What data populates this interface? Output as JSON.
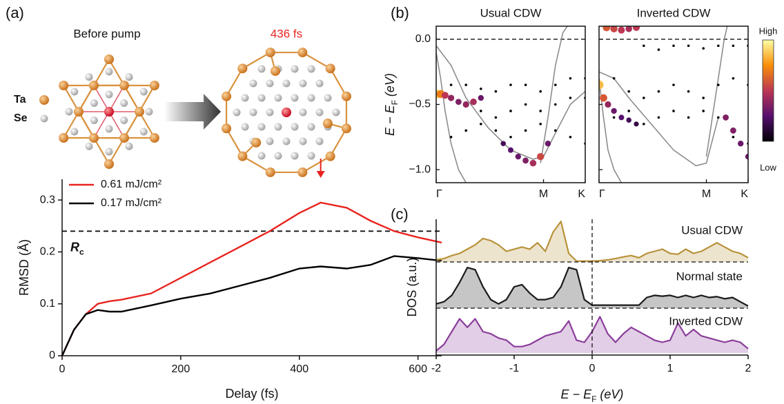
{
  "structure": {
    "label": "(a)",
    "before": "Before pump",
    "after": "436 fs",
    "legend": [
      "Ta",
      "Se"
    ]
  },
  "chart_data": [
    {
      "type": "line",
      "xlabel": "Delay (fs)",
      "ylabel": "RMSD (Å)",
      "x": [
        0,
        20,
        40,
        60,
        80,
        100,
        150,
        200,
        250,
        300,
        350,
        400,
        436,
        480,
        520,
        560,
        600,
        640
      ],
      "series": [
        {
          "name": "0.61 mJ/cm²",
          "color": "#e8231f",
          "values": [
            0,
            0.05,
            0.08,
            0.1,
            0.105,
            0.108,
            0.12,
            0.15,
            0.18,
            0.21,
            0.24,
            0.275,
            0.295,
            0.285,
            0.26,
            0.24,
            0.228,
            0.218
          ]
        },
        {
          "name": "0.17 mJ/cm²",
          "color": "#000000",
          "values": [
            0,
            0.05,
            0.08,
            0.088,
            0.085,
            0.085,
            0.097,
            0.11,
            0.12,
            0.135,
            0.15,
            0.168,
            0.172,
            0.168,
            0.175,
            0.192,
            0.188,
            0.183
          ]
        }
      ],
      "xlim": [
        0,
        640
      ],
      "xticks": [
        0,
        200,
        400,
        600
      ],
      "ylim": [
        0,
        0.34
      ],
      "yticks": [
        0,
        0.1,
        0.2,
        0.3
      ],
      "threshold": {
        "value": 0.24,
        "label": [
          "R",
          "c"
        ]
      },
      "arrow_x": 436
    },
    {
      "type": "scatter",
      "panel_label": "(b)",
      "ylabel": [
        "E − E",
        "F",
        " (eV)"
      ],
      "xlim": [
        0,
        1
      ],
      "xticks": [
        {
          "value": 0,
          "label": "Γ"
        },
        {
          "value": 0.72,
          "label": "M"
        },
        {
          "value": 1,
          "label": "K"
        }
      ],
      "ylim": [
        -1.1,
        0.1
      ],
      "yticks": [
        {
          "value": 0,
          "label": "0.0"
        },
        {
          "value": -0.5,
          "label": "−0.5"
        },
        {
          "value": -1,
          "label": "−1.0"
        }
      ],
      "fermi": 0,
      "colorbar": [
        "High",
        "Low"
      ],
      "panels": [
        {
          "title": "Usual CDW",
          "series": [
            {
              "style": "line",
              "color": "#8c8c8c",
              "x": [
                0,
                0.03,
                0.06,
                0.1,
                0.15,
                0.2
              ],
              "values": [
                -0.1,
                -0.3,
                -0.55,
                -0.8,
                -1.0,
                -1.1
              ]
            },
            {
              "style": "line",
              "color": "#8c8c8c",
              "x": [
                0,
                0.1,
                0.2,
                0.35,
                0.5,
                0.65,
                0.72,
                0.8,
                0.9,
                1
              ],
              "values": [
                -0.05,
                -0.2,
                -0.45,
                -0.68,
                -0.85,
                -0.92,
                -0.9,
                -0.72,
                -0.5,
                -0.4
              ]
            },
            {
              "style": "line",
              "color": "#8c8c8c",
              "x": [
                0.7,
                0.75,
                0.8,
                0.85,
                0.88
              ],
              "values": [
                -0.95,
                -0.6,
                -0.2,
                0.05,
                0.1
              ]
            },
            {
              "style": "dots",
              "color": "#000000",
              "x": [
                0.1,
                0.2,
                0.3,
                0.4,
                0.5,
                0.6,
                0.7,
                0.8,
                0.9,
                1
              ],
              "values": [
                -0.35,
                -0.35,
                -0.38,
                -0.4,
                -0.35,
                -0.35,
                -0.4,
                -0.35,
                -0.3,
                -0.3
              ]
            },
            {
              "style": "dots",
              "color": "#000000",
              "x": [
                0.1,
                0.2,
                0.3,
                0.4,
                0.5,
                0.6,
                0.7,
                0.8,
                0.9,
                1
              ],
              "values": [
                -0.45,
                -0.5,
                -0.55,
                -0.6,
                -0.55,
                -0.5,
                -0.55,
                -0.5,
                -0.45,
                -0.45
              ]
            },
            {
              "style": "dots",
              "color": "#000000",
              "x": [
                0.1,
                0.2,
                0.3,
                0.4,
                0.5,
                0.6,
                0.7,
                0.8,
                0.9,
                1
              ],
              "values": [
                -0.75,
                -0.7,
                -0.65,
                -0.7,
                -0.75,
                -0.7,
                -0.65,
                -0.7,
                -0.75,
                -0.8
              ]
            },
            {
              "style": "weighted",
              "x": [
                0,
                0.03,
                0.06,
                0.1,
                0.15,
                0.2,
                0.25,
                0.3
              ],
              "values": [
                -0.42,
                -0.42,
                -0.43,
                -0.45,
                -0.48,
                -0.5,
                -0.48,
                -0.45
              ],
              "weights": [
                0.9,
                0.7,
                0.5,
                0.4,
                0.35,
                0.4,
                0.45,
                0.3
              ]
            },
            {
              "style": "weighted",
              "x": [
                0.45,
                0.5,
                0.55,
                0.6,
                0.65,
                0.7,
                0.75
              ],
              "values": [
                -0.8,
                -0.85,
                -0.9,
                -0.93,
                -0.95,
                -0.9,
                -0.8
              ],
              "weights": [
                0.2,
                0.25,
                0.3,
                0.35,
                0.45,
                0.55,
                0.3
              ]
            }
          ]
        },
        {
          "title": "Inverted CDW",
          "series": [
            {
              "style": "line",
              "color": "#8c8c8c",
              "x": [
                0,
                0.03,
                0.06,
                0.1,
                0.15
              ],
              "values": [
                -0.3,
                -0.6,
                -0.85,
                -1.0,
                -1.1
              ]
            },
            {
              "style": "line",
              "color": "#8c8c8c",
              "x": [
                0,
                0.1,
                0.2,
                0.35,
                0.5,
                0.65,
                0.72,
                0.8
              ],
              "values": [
                -0.25,
                -0.3,
                -0.45,
                -0.65,
                -0.85,
                -0.97,
                -0.95,
                -0.6
              ]
            },
            {
              "style": "line",
              "color": "#8c8c8c",
              "x": [
                0.72,
                0.76,
                0.8,
                0.84,
                0.86
              ],
              "values": [
                -0.9,
                -0.6,
                -0.3,
                0,
                0.1
              ]
            },
            {
              "style": "dots",
              "color": "#000000",
              "x": [
                0.3,
                0.4,
                0.5,
                0.6,
                0.7,
                0.8,
                0.9,
                1
              ],
              "values": [
                -0.05,
                -0.08,
                -0.05,
                -0.05,
                -0.07,
                -0.05,
                -0.05,
                -0.05
              ]
            },
            {
              "style": "dots",
              "color": "#000000",
              "x": [
                0.1,
                0.2,
                0.3,
                0.4,
                0.5,
                0.6,
                0.7,
                0.8,
                0.9,
                1
              ],
              "values": [
                -0.3,
                -0.4,
                -0.45,
                -0.4,
                -0.35,
                -0.4,
                -0.45,
                -0.35,
                -0.3,
                -0.35
              ]
            },
            {
              "style": "dots",
              "color": "#000000",
              "x": [
                0.1,
                0.2,
                0.3,
                0.4,
                0.5,
                0.6,
                0.7,
                0.8,
                0.9,
                1
              ],
              "values": [
                -0.6,
                -0.55,
                -0.65,
                -0.6,
                -0.55,
                -0.6,
                -0.55,
                -0.6,
                -0.75,
                -0.8
              ]
            },
            {
              "style": "weighted",
              "x": [
                0,
                0.03,
                0.06,
                0.1,
                0.15,
                0.2,
                0.25
              ],
              "values": [
                -0.35,
                -0.45,
                -0.5,
                -0.55,
                -0.6,
                -0.62,
                -0.65
              ],
              "weights": [
                0.85,
                0.6,
                0.4,
                0.3,
                0.25,
                0.2,
                0.15
              ]
            },
            {
              "style": "weighted",
              "x": [
                0.05,
                0.1,
                0.15,
                0.2,
                0.25
              ],
              "values": [
                0.09,
                0.08,
                0.07,
                0.08,
                0.09
              ],
              "weights": [
                0.6,
                0.55,
                0.5,
                0.45,
                0.5
              ]
            },
            {
              "style": "weighted",
              "x": [
                0.85,
                0.9,
                0.95,
                1
              ],
              "values": [
                -0.6,
                -0.7,
                -0.8,
                -0.9
              ],
              "weights": [
                0.35,
                0.35,
                0.3,
                0.3
              ]
            }
          ]
        }
      ]
    },
    {
      "type": "area",
      "panel_label": "(c)",
      "ylabel": "DOS (a.u.)",
      "xlabel": [
        "E − E",
        "F",
        " (eV)"
      ],
      "x": [
        -2,
        -1.9,
        -1.8,
        -1.7,
        -1.6,
        -1.5,
        -1.4,
        -1.3,
        -1.2,
        -1.1,
        -1,
        -0.9,
        -0.8,
        -0.7,
        -0.6,
        -0.5,
        -0.4,
        -0.3,
        -0.2,
        -0.1,
        0,
        0.1,
        0.2,
        0.3,
        0.4,
        0.5,
        0.6,
        0.7,
        0.8,
        0.9,
        1,
        1.1,
        1.2,
        1.3,
        1.4,
        1.5,
        1.6,
        1.7,
        1.8,
        1.9,
        2
      ],
      "xlim": [
        -2,
        2
      ],
      "xticks": [
        -2,
        -1,
        0,
        1,
        2
      ],
      "fermi": 0,
      "series": [
        {
          "name": "Usual CDW",
          "color": "#b8923a",
          "values": [
            0.05,
            0.08,
            0.15,
            0.2,
            0.3,
            0.4,
            0.55,
            0.5,
            0.4,
            0.25,
            0.3,
            0.35,
            0.3,
            0.45,
            0.25,
            0.7,
            0.95,
            0.2,
            0.02,
            0.02,
            0.02,
            0.03,
            0.05,
            0.08,
            0.12,
            0.15,
            0.1,
            0.2,
            0.25,
            0.3,
            0.2,
            0.18,
            0.3,
            0.2,
            0.25,
            0.35,
            0.45,
            0.35,
            0.25,
            0.2,
            0.1
          ]
        },
        {
          "name": "Normal state",
          "color": "#1a1a1a",
          "values": [
            0.1,
            0.15,
            0.3,
            0.6,
            0.95,
            0.9,
            0.5,
            0.2,
            0.1,
            0.2,
            0.5,
            0.55,
            0.35,
            0.2,
            0.2,
            0.25,
            0.5,
            0.95,
            0.9,
            0.2,
            0.07,
            0.07,
            0.07,
            0.07,
            0.07,
            0.07,
            0.07,
            0.25,
            0.3,
            0.28,
            0.3,
            0.25,
            0.3,
            0.25,
            0.3,
            0.25,
            0.27,
            0.22,
            0.25,
            0.15,
            0.05
          ]
        },
        {
          "name": "Inverted CDW",
          "color": "#8a3d9a",
          "values": [
            0.05,
            0.2,
            0.5,
            0.8,
            0.6,
            0.8,
            0.5,
            0.45,
            0.35,
            0.3,
            0.15,
            0.15,
            0.2,
            0.3,
            0.4,
            0.45,
            0.5,
            0.75,
            0.3,
            0.25,
            0.5,
            0.85,
            0.45,
            0.25,
            0.45,
            0.6,
            0.5,
            0.4,
            0.3,
            0.25,
            0.3,
            0.7,
            0.4,
            0.55,
            0.4,
            0.35,
            0.3,
            0.25,
            0.3,
            0.25,
            0.1
          ]
        }
      ]
    }
  ]
}
